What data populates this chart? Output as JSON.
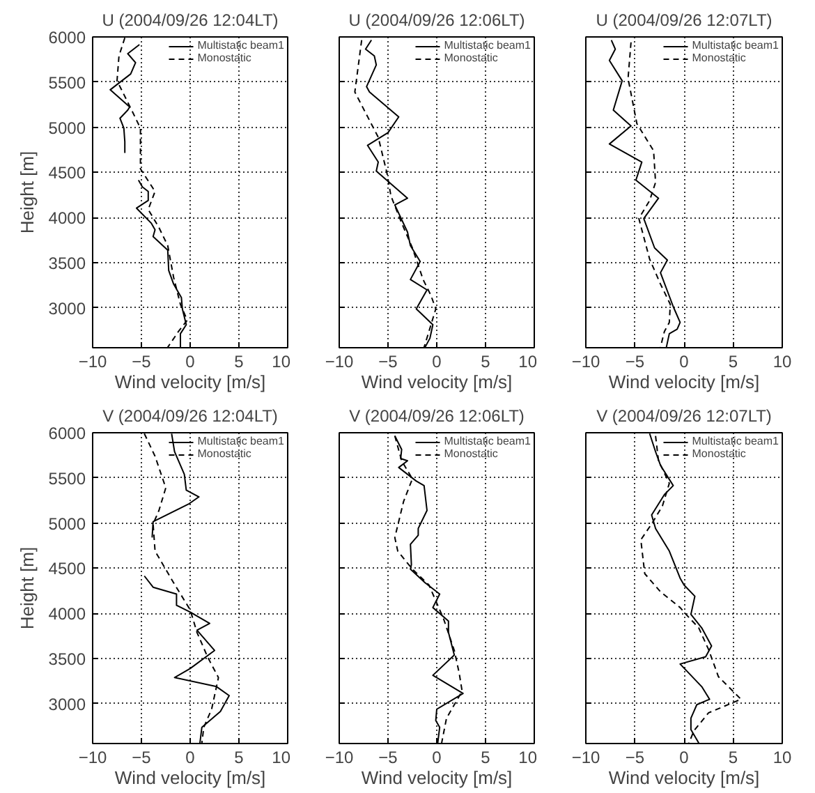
{
  "chart_data": [
    {
      "type": "line",
      "title": "U (2004/09/26 12:04LT)",
      "xlabel": "Wind velocity [m/s]",
      "ylabel": "Height [m]",
      "xlim": [
        -10,
        10
      ],
      "ylim": [
        2560,
        6000
      ],
      "xticks": [
        -10,
        -5,
        0,
        5,
        10
      ],
      "yticks": [
        3000,
        3500,
        4000,
        4500,
        5000,
        5500,
        6000
      ],
      "grid": true,
      "legend": "top right",
      "series": [
        {
          "name": "Multistatic beam1",
          "color": "#000000",
          "line_style": "solid",
          "x": [
            -5.2,
            -6.4,
            -5.6,
            -6.1,
            -8.2,
            -6.2,
            -6.4,
            -7.2,
            -6.8,
            -6.7,
            -6.7,
            null,
            -5.3,
            -4.9,
            -4.3,
            -4.3,
            -5.5,
            -4.0,
            -3.6,
            -3.8,
            -2.3,
            -2.2,
            -1.7,
            -0.9,
            -0.8,
            -0.4,
            -1.0,
            -1.0
          ],
          "values": [
            5915,
            5815,
            5715,
            5590,
            5415,
            5225,
            5190,
            5100,
            4990,
            4840,
            4715,
            null,
            4415,
            4340,
            4290,
            4190,
            4105,
            3940,
            3865,
            3790,
            3640,
            3415,
            3265,
            3115,
            2990,
            2815,
            2715,
            2565
          ]
        },
        {
          "name": "Monostatic",
          "color": "#000000",
          "line_style": "dashed",
          "x": [
            -6.7,
            -7.3,
            -7.5,
            -6.0,
            -5.1,
            -5.1,
            -5.1,
            -3.6,
            -4.3,
            -3.2,
            -2.3,
            -1.7,
            -1.0,
            -0.3,
            -1.2,
            -2.3
          ],
          "values": [
            5990,
            5790,
            5515,
            5190,
            4990,
            4790,
            4540,
            4290,
            4090,
            3890,
            3690,
            3340,
            3040,
            2865,
            2740,
            2565
          ]
        }
      ]
    },
    {
      "type": "line",
      "title": "U (2004/09/26 12:06LT)",
      "xlabel": "Wind velocity [m/s]",
      "xlim": [
        -10,
        10
      ],
      "ylim": [
        2560,
        6000
      ],
      "xticks": [
        -10,
        -5,
        0,
        5,
        10
      ],
      "yticks": [
        3000,
        3500,
        4000,
        4500,
        5000,
        5500,
        6000
      ],
      "grid": true,
      "legend": "top right",
      "tick_labels": "x",
      "series": [
        {
          "name": "Multistatic beam1",
          "color": "#000000",
          "line_style": "solid",
          "x": [
            -6.7,
            -7.3,
            -6.4,
            -6.2,
            -7.2,
            -6.9,
            -3.9,
            -5.0,
            -7.1,
            -6.0,
            -6.2,
            -3.0,
            -4.3,
            -3.0,
            -2.7,
            -1.7,
            -2.7,
            -1.0,
            -2.1,
            -0.4,
            -0.7,
            -1.2
          ],
          "values": [
            5965,
            5865,
            5790,
            5690,
            5450,
            5390,
            5115,
            4940,
            4800,
            4615,
            4515,
            4215,
            4140,
            3840,
            3690,
            3515,
            3315,
            3200,
            2990,
            2815,
            2665,
            2565
          ]
        },
        {
          "name": "Monostatic",
          "color": "#000000",
          "line_style": "dashed",
          "x": [
            -7.7,
            -8.4,
            -6.0,
            -5.1,
            -4.7,
            -3.6,
            -2.5,
            -1.4,
            -0.6,
            -0.1,
            -0.8,
            -1.3
          ],
          "values": [
            5965,
            5390,
            4890,
            4490,
            4240,
            3940,
            3665,
            3315,
            3140,
            2990,
            2740,
            2565
          ]
        }
      ]
    },
    {
      "type": "line",
      "title": "U (2004/09/26 12:07LT)",
      "xlabel": "Wind velocity [m/s]",
      "xlim": [
        -10,
        10
      ],
      "ylim": [
        2560,
        6000
      ],
      "xticks": [
        -10,
        -5,
        0,
        5,
        10
      ],
      "yticks": [
        3000,
        3500,
        4000,
        4500,
        5000,
        5500,
        6000
      ],
      "grid": true,
      "legend": "top right",
      "tick_labels": "x",
      "series": [
        {
          "name": "Multistatic beam1",
          "color": "#000000",
          "line_style": "solid",
          "x": [
            -7.4,
            -7.0,
            -7.6,
            -6.3,
            -7.2,
            -5.4,
            -7.6,
            -4.3,
            -4.9,
            -2.6,
            -4.1,
            -3.0,
            -1.7,
            -2.4,
            -1.1,
            -0.4,
            -0.7,
            -1.5,
            -1.8
          ],
          "values": [
            5965,
            5865,
            5740,
            5515,
            5190,
            5015,
            4815,
            4615,
            4415,
            4215,
            3990,
            3665,
            3530,
            3390,
            3015,
            2840,
            2765,
            2715,
            2565
          ]
        },
        {
          "name": "Monostatic",
          "color": "#000000",
          "line_style": "dashed",
          "x": [
            -5.4,
            -5.7,
            -4.8,
            -3.1,
            -2.9,
            -3.5,
            -4.6,
            -3.5,
            -2.4,
            -1.4,
            -1.5,
            -2.0,
            -2.4
          ],
          "values": [
            5940,
            5540,
            5040,
            4740,
            4390,
            4190,
            3990,
            3540,
            3265,
            3040,
            2840,
            2740,
            2565
          ]
        }
      ]
    },
    {
      "type": "line",
      "title": "V (2004/09/26 12:04LT)",
      "xlabel": "Wind velocity [m/s]",
      "ylabel": "Height [m]",
      "xlim": [
        -10,
        10
      ],
      "ylim": [
        2560,
        6000
      ],
      "xticks": [
        -10,
        -5,
        0,
        5,
        10
      ],
      "yticks": [
        3000,
        3500,
        4000,
        4500,
        5000,
        5500,
        6000
      ],
      "grid": true,
      "legend": "top right",
      "series": [
        {
          "name": "Multistatic beam1",
          "color": "#000000",
          "line_style": "solid",
          "x": [
            -1.9,
            -1.6,
            -0.6,
            -0.4,
            0.9,
            -0.1,
            -3.8,
            -3.9,
            null,
            -4.7,
            -3.8,
            -1.4,
            -1.4,
            0.0,
            2.0,
            0.7,
            2.5,
            0.0,
            -1.6,
            2.7,
            4.0,
            3.1,
            1.2,
            1.0
          ],
          "values": [
            5990,
            5790,
            5540,
            5365,
            5290,
            5215,
            5015,
            4840,
            null,
            4415,
            4290,
            4215,
            4090,
            4015,
            3890,
            3815,
            3590,
            3390,
            3290,
            3190,
            3090,
            2915,
            2740,
            2565
          ]
        },
        {
          "name": "Monostatic",
          "color": "#000000",
          "line_style": "dashed",
          "x": [
            -4.7,
            -3.6,
            -2.5,
            -3.2,
            -3.8,
            -3.6,
            -1.7,
            0.0,
            0.7,
            1.8,
            2.9,
            2.2,
            1.4,
            1.2
          ],
          "values": [
            5990,
            5740,
            5390,
            5140,
            4990,
            4690,
            4340,
            4040,
            3790,
            3515,
            3290,
            2940,
            2740,
            2565
          ]
        }
      ]
    },
    {
      "type": "line",
      "title": "V (2004/09/26 12:06LT)",
      "xlabel": "Wind velocity [m/s]",
      "xlim": [
        -10,
        10
      ],
      "ylim": [
        2560,
        6000
      ],
      "xticks": [
        -10,
        -5,
        0,
        5,
        10
      ],
      "yticks": [
        3000,
        3500,
        4000,
        4500,
        5000,
        5500,
        6000
      ],
      "grid": true,
      "legend": "top right",
      "tick_labels": "x",
      "series": [
        {
          "name": "Multistatic beam1",
          "color": "#000000",
          "line_style": "solid",
          "x": [
            -4.3,
            -3.6,
            -3.7,
            -3.0,
            -3.9,
            -2.1,
            -1.3,
            -1.0,
            -1.9,
            -1.9,
            -2.7,
            -2.6,
            -2.7,
            -1.2,
            0.3,
            -0.4,
            1.2,
            1.2,
            1.8,
            -0.4,
            2.7,
            0.0,
            -0.1,
            0.3,
            0.1
          ],
          "values": [
            5965,
            5815,
            5715,
            5690,
            5615,
            5465,
            5415,
            5140,
            4940,
            4865,
            4765,
            4540,
            4490,
            4340,
            4215,
            4065,
            3915,
            3790,
            3540,
            3315,
            3115,
            2940,
            2815,
            2740,
            2565
          ]
        },
        {
          "name": "Monostatic",
          "color": "#000000",
          "line_style": "dashed",
          "x": [
            -4.3,
            -3.6,
            -2.5,
            -3.4,
            -4.3,
            -4.0,
            -2.5,
            -0.8,
            0.1,
            0.7,
            1.8,
            2.3,
            2.6,
            1.0,
            0.5
          ],
          "values": [
            5965,
            5690,
            5490,
            5240,
            4840,
            4690,
            4490,
            4315,
            4090,
            3940,
            3590,
            3340,
            3140,
            2840,
            2565
          ]
        }
      ]
    },
    {
      "type": "line",
      "title": "V (2004/09/26 12:07LT)",
      "xlabel": "Wind velocity [m/s]",
      "xlim": [
        -10,
        10
      ],
      "ylim": [
        2560,
        6000
      ],
      "xticks": [
        -10,
        -5,
        0,
        5,
        10
      ],
      "yticks": [
        3000,
        3500,
        4000,
        4500,
        5000,
        5500,
        6000
      ],
      "grid": true,
      "legend": "top right",
      "tick_labels": "x",
      "series": [
        {
          "name": "Multistatic beam1",
          "color": "#000000",
          "line_style": "solid",
          "x": [
            -3.5,
            -2.9,
            -2.4,
            -1.1,
            -2.0,
            -3.3,
            -2.9,
            -1.5,
            -0.4,
            0.0,
            1.1,
            0.7,
            1.8,
            2.8,
            2.2,
            -0.4,
            1.8,
            2.6,
            1.3,
            0.7,
            0.7,
            1.5
          ],
          "values": [
            5990,
            5790,
            5640,
            5415,
            5315,
            5090,
            4940,
            4690,
            4390,
            4315,
            4190,
            3990,
            3840,
            3640,
            3520,
            3440,
            3190,
            3050,
            2990,
            2840,
            2715,
            2565
          ]
        },
        {
          "name": "Monostatic",
          "color": "#000000",
          "line_style": "dashed",
          "x": [
            -2.9,
            -2.6,
            -1.5,
            -2.2,
            -3.3,
            -4.4,
            -4.0,
            -2.4,
            -0.4,
            0.2,
            1.5,
            2.5,
            3.5,
            5.8,
            2.5,
            1.0,
            0.5
          ],
          "values": [
            5965,
            5690,
            5440,
            5190,
            4990,
            4815,
            4440,
            4240,
            4065,
            3990,
            3840,
            3600,
            3300,
            3050,
            2900,
            2700,
            2565
          ]
        }
      ]
    }
  ]
}
